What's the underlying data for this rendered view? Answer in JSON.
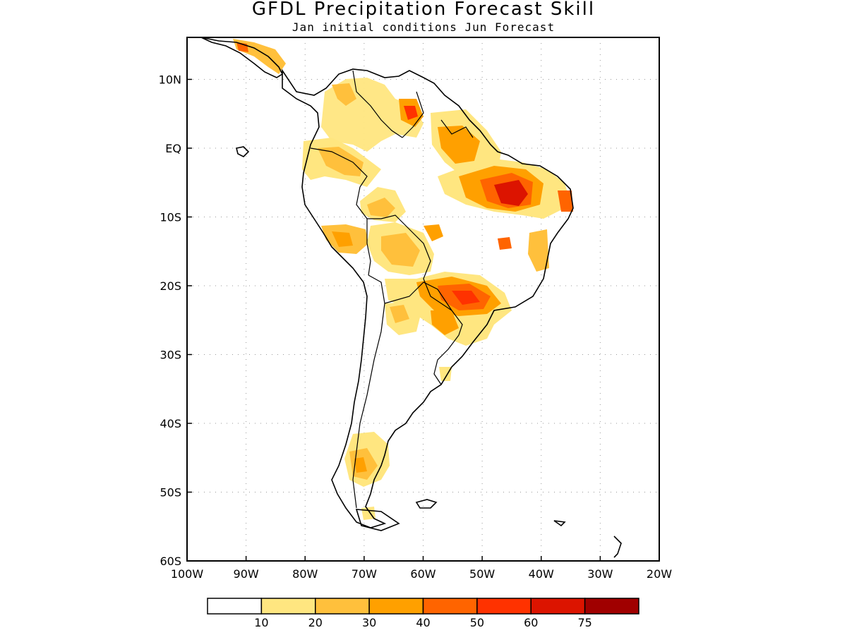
{
  "title": "GFDL Precipitation Forecast Skill",
  "subtitle": "Jan initial conditions  Jun Forecast",
  "map": {
    "lon_range": [
      -100,
      -20
    ],
    "lat_range": [
      -60,
      16
    ],
    "lat_ticks": [
      "10N",
      "EQ",
      "10S",
      "20S",
      "30S",
      "40S",
      "50S",
      "60S"
    ],
    "lon_ticks": [
      "100W",
      "90W",
      "80W",
      "70W",
      "60W",
      "50W",
      "40W",
      "30W",
      "20W"
    ],
    "grid": "dotted",
    "region": "South America"
  },
  "colorbar": {
    "labels": [
      "10",
      "20",
      "30",
      "40",
      "50",
      "60",
      "75"
    ],
    "colors": [
      "#ffffff",
      "#ffe680",
      "#ffc03c",
      "#ffa000",
      "#ff6400",
      "#ff3200",
      "#dc1400",
      "#a00000"
    ]
  },
  "skill_regions": [
    {
      "lon": -74,
      "lat": 5,
      "value": 22
    },
    {
      "lon": -63,
      "lat": 6,
      "value": 55
    },
    {
      "lon": -54,
      "lat": 0,
      "value": 38
    },
    {
      "lon": -44,
      "lat": -6,
      "value": 62
    },
    {
      "lon": -36,
      "lat": -7,
      "value": 45
    },
    {
      "lon": -66,
      "lat": -9,
      "value": 28
    },
    {
      "lon": -73,
      "lat": -13,
      "value": 35
    },
    {
      "lon": -64,
      "lat": -15,
      "value": 28
    },
    {
      "lon": -58,
      "lat": -12,
      "value": 42
    },
    {
      "lon": -45,
      "lat": -14,
      "value": 48
    },
    {
      "lon": -38,
      "lat": -14,
      "value": 30
    },
    {
      "lon": -53,
      "lat": -22,
      "value": 50
    },
    {
      "lon": -57,
      "lat": -25,
      "value": 35
    },
    {
      "lon": -64,
      "lat": -25,
      "value": 28
    },
    {
      "lon": -71,
      "lat": -46,
      "value": 35
    }
  ]
}
